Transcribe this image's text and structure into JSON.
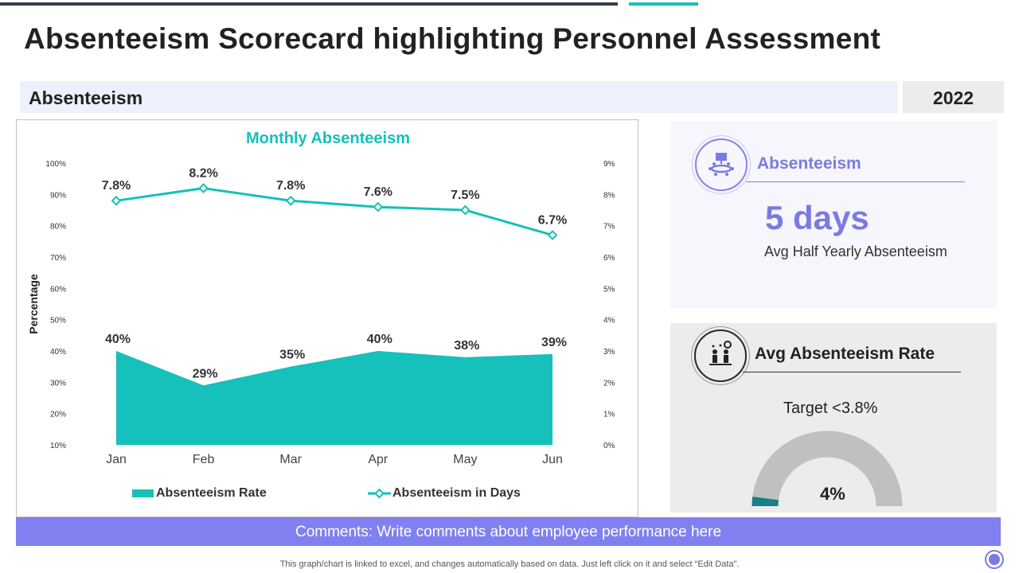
{
  "page": {
    "title": "Absenteeism Scorecard highlighting Personnel Assessment",
    "section_label": "Absenteeism",
    "year": "2022"
  },
  "kpi_days": {
    "title": "Absenteeism",
    "value": "5 days",
    "subtitle": "Avg Half Yearly Absenteeism",
    "icon": "meeting-board-icon"
  },
  "kpi_rate": {
    "title": "Avg Absenteeism Rate",
    "target": "Target <3.8%",
    "value": "4%",
    "gauge_fraction": 0.04,
    "icon": "team-gears-icon"
  },
  "comments": "Comments: Write comments about employee performance here",
  "footnote": "This graph/chart is linked to excel,  and changes automatically based on data. Just left click on it and select “Edit Data”.",
  "colors": {
    "accent": "#16c0bb",
    "purple": "#7a7ae4",
    "gauge_bg": "#c0c0c0",
    "gauge_fill": "#17808a"
  },
  "chart_data": {
    "type": "area+line",
    "title": "Monthly Absenteeism",
    "categories": [
      "Jan",
      "Feb",
      "Mar",
      "Apr",
      "May",
      "Jun"
    ],
    "ylabel": "Percentage",
    "y_left": {
      "min": 10,
      "max": 100,
      "ticks": [
        "10%",
        "20%",
        "30%",
        "40%",
        "50%",
        "60%",
        "70%",
        "80%",
        "90%",
        "100%"
      ]
    },
    "y_right": {
      "min": 0,
      "max": 9,
      "ticks": [
        "0%",
        "1%",
        "2%",
        "3%",
        "4%",
        "5%",
        "6%",
        "7%",
        "8%",
        "9%"
      ]
    },
    "series": [
      {
        "name": "Absenteeism Rate",
        "type": "area",
        "axis": "left",
        "values": [
          40,
          29,
          35,
          40,
          38,
          39
        ],
        "labels": [
          "40%",
          "29%",
          "35%",
          "40%",
          "38%",
          "39%"
        ]
      },
      {
        "name": "Absenteeism in Days",
        "type": "line",
        "axis": "right",
        "values": [
          7.8,
          8.2,
          7.8,
          7.6,
          7.5,
          6.7
        ],
        "labels": [
          "7.8%",
          "8.2%",
          "7.8%",
          "7.6%",
          "7.5%",
          "6.7%"
        ]
      }
    ],
    "legend": "bottom",
    "grid": false
  }
}
